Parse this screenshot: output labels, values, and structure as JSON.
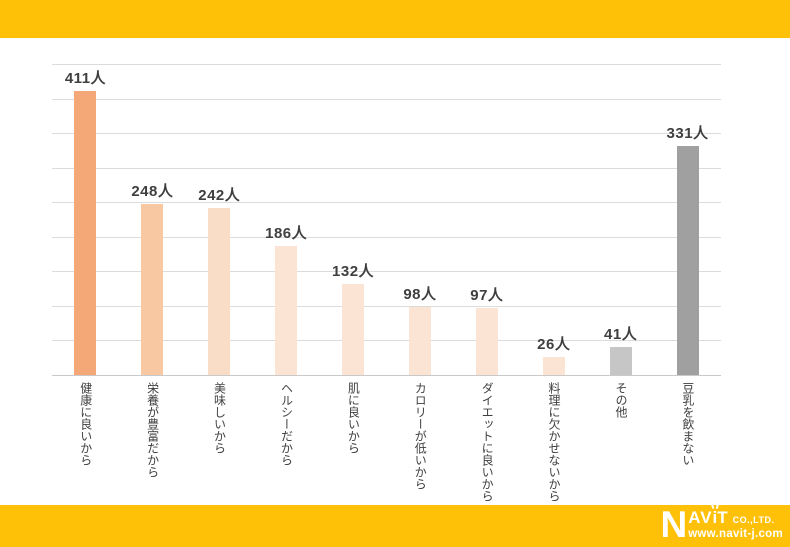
{
  "colors": {
    "band_yellow": "#FFC008",
    "background": "#FFFFFF",
    "gridline": "#DCDCDC",
    "baseline": "#C9C9C9",
    "value_label": "#3F3F3F",
    "category_label": "#404040",
    "logo_text": "#FFFFFF"
  },
  "chart_data": {
    "type": "bar",
    "title": "",
    "xlabel": "",
    "ylabel": "",
    "unit": "人",
    "categories": [
      "健康に良いから",
      "栄養が豊富だから",
      "美味しいから",
      "ヘルシーだから",
      "肌に良いから",
      "カロリーが低いから",
      "ダイエットに良いから",
      "料理に欠かせないから",
      "その他",
      "豆乳を飲まない"
    ],
    "values": [
      411,
      248,
      242,
      186,
      132,
      98,
      97,
      26,
      41,
      331
    ],
    "value_labels": [
      "411人",
      "248人",
      "242人",
      "186人",
      "132人",
      "98人",
      "97人",
      "26人",
      "41人",
      "331人"
    ],
    "bar_colors": [
      "#F4A878",
      "#F7C8A2",
      "#FADDC6",
      "#FBE4D3",
      "#FBE4D3",
      "#FBE4D3",
      "#FBE4D3",
      "#FBE4D3",
      "#C6C6C6",
      "#A0A0A0"
    ],
    "ylim": [
      0,
      450
    ],
    "gridline_step": 50,
    "grid": true,
    "legend_position": "none"
  },
  "logo": {
    "letter_n": "N",
    "letters_av": "AV",
    "letter_i": "i",
    "letter_t": "T",
    "company_suffix": "CO.,LTD.",
    "website": "www.navit-j.com"
  }
}
